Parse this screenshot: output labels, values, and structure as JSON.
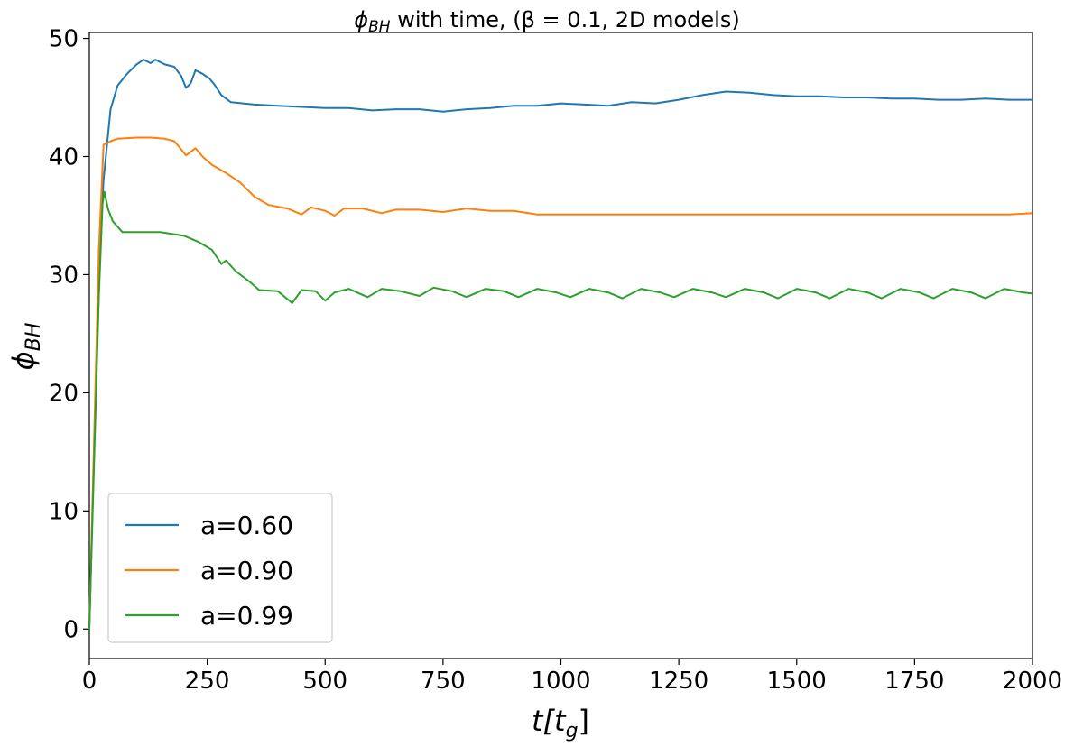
{
  "chart_data": {
    "type": "line",
    "title": "ϕBH with time, (β = 0.1, 2D models)",
    "title_parts": {
      "symbol": "ϕ",
      "subscript": "BH",
      "rest": " with time, (β = 0.1, 2D models)"
    },
    "xlabel_parts": {
      "main": "t[t",
      "subscript": "g",
      "end": "]"
    },
    "ylabel_parts": {
      "symbol": "ϕ",
      "subscript": "BH"
    },
    "xlim": [
      0,
      2000
    ],
    "ylim": [
      -2.5,
      50.5
    ],
    "xticks": [
      0,
      250,
      500,
      750,
      1000,
      1250,
      1500,
      1750,
      2000
    ],
    "yticks": [
      0,
      10,
      20,
      30,
      40,
      50
    ],
    "grid": false,
    "legend_position": "lower-left",
    "series": [
      {
        "name": "a=0.60",
        "color": "#1f77b4",
        "points": [
          [
            0,
            0
          ],
          [
            10,
            15
          ],
          [
            20,
            30
          ],
          [
            30,
            38
          ],
          [
            45,
            44
          ],
          [
            60,
            46
          ],
          [
            80,
            47
          ],
          [
            100,
            47.8
          ],
          [
            115,
            48.2
          ],
          [
            130,
            47.9
          ],
          [
            140,
            48.2
          ],
          [
            160,
            47.8
          ],
          [
            180,
            47.6
          ],
          [
            195,
            46.8
          ],
          [
            205,
            45.8
          ],
          [
            215,
            46.2
          ],
          [
            225,
            47.3
          ],
          [
            240,
            47.0
          ],
          [
            255,
            46.6
          ],
          [
            265,
            46.1
          ],
          [
            280,
            45.2
          ],
          [
            300,
            44.6
          ],
          [
            350,
            44.4
          ],
          [
            400,
            44.3
          ],
          [
            450,
            44.2
          ],
          [
            500,
            44.1
          ],
          [
            550,
            44.1
          ],
          [
            600,
            43.9
          ],
          [
            650,
            44.0
          ],
          [
            700,
            44.0
          ],
          [
            750,
            43.8
          ],
          [
            800,
            44.0
          ],
          [
            850,
            44.1
          ],
          [
            900,
            44.3
          ],
          [
            950,
            44.3
          ],
          [
            1000,
            44.5
          ],
          [
            1050,
            44.4
          ],
          [
            1100,
            44.3
          ],
          [
            1150,
            44.6
          ],
          [
            1200,
            44.5
          ],
          [
            1250,
            44.8
          ],
          [
            1300,
            45.2
          ],
          [
            1350,
            45.5
          ],
          [
            1400,
            45.4
          ],
          [
            1450,
            45.2
          ],
          [
            1500,
            45.1
          ],
          [
            1550,
            45.1
          ],
          [
            1600,
            45.0
          ],
          [
            1650,
            45.0
          ],
          [
            1700,
            44.9
          ],
          [
            1750,
            44.9
          ],
          [
            1800,
            44.8
          ],
          [
            1850,
            44.8
          ],
          [
            1900,
            44.9
          ],
          [
            1950,
            44.8
          ],
          [
            2000,
            44.8
          ]
        ]
      },
      {
        "name": "a=0.90",
        "color": "#ff7f0e",
        "points": [
          [
            0,
            0
          ],
          [
            10,
            16
          ],
          [
            20,
            32
          ],
          [
            30,
            41
          ],
          [
            45,
            41.3
          ],
          [
            60,
            41.5
          ],
          [
            100,
            41.6
          ],
          [
            130,
            41.6
          ],
          [
            160,
            41.5
          ],
          [
            180,
            41.3
          ],
          [
            195,
            40.6
          ],
          [
            205,
            40.1
          ],
          [
            215,
            40.4
          ],
          [
            225,
            40.7
          ],
          [
            240,
            40.0
          ],
          [
            260,
            39.3
          ],
          [
            290,
            38.6
          ],
          [
            320,
            37.8
          ],
          [
            350,
            36.6
          ],
          [
            380,
            35.9
          ],
          [
            420,
            35.6
          ],
          [
            450,
            35.1
          ],
          [
            470,
            35.7
          ],
          [
            500,
            35.4
          ],
          [
            520,
            35.0
          ],
          [
            540,
            35.6
          ],
          [
            580,
            35.6
          ],
          [
            620,
            35.2
          ],
          [
            650,
            35.5
          ],
          [
            700,
            35.5
          ],
          [
            750,
            35.3
          ],
          [
            800,
            35.6
          ],
          [
            850,
            35.4
          ],
          [
            900,
            35.4
          ],
          [
            950,
            35.1
          ],
          [
            1000,
            35.1
          ],
          [
            1100,
            35.1
          ],
          [
            1200,
            35.1
          ],
          [
            1300,
            35.1
          ],
          [
            1400,
            35.1
          ],
          [
            1500,
            35.1
          ],
          [
            1600,
            35.1
          ],
          [
            1700,
            35.1
          ],
          [
            1800,
            35.1
          ],
          [
            1900,
            35.1
          ],
          [
            1950,
            35.1
          ],
          [
            2000,
            35.2
          ]
        ]
      },
      {
        "name": "a=0.99",
        "color": "#2ca02c",
        "points": [
          [
            0,
            0
          ],
          [
            10,
            14
          ],
          [
            20,
            28
          ],
          [
            28,
            36
          ],
          [
            32,
            37
          ],
          [
            40,
            35.5
          ],
          [
            50,
            34.5
          ],
          [
            70,
            33.6
          ],
          [
            100,
            33.6
          ],
          [
            150,
            33.6
          ],
          [
            200,
            33.3
          ],
          [
            230,
            32.8
          ],
          [
            260,
            32.1
          ],
          [
            275,
            31.2
          ],
          [
            280,
            30.9
          ],
          [
            290,
            31.2
          ],
          [
            310,
            30.3
          ],
          [
            340,
            29.4
          ],
          [
            360,
            28.7
          ],
          [
            400,
            28.6
          ],
          [
            430,
            27.6
          ],
          [
            450,
            28.7
          ],
          [
            480,
            28.6
          ],
          [
            500,
            27.8
          ],
          [
            520,
            28.5
          ],
          [
            550,
            28.8
          ],
          [
            590,
            28.1
          ],
          [
            620,
            28.8
          ],
          [
            660,
            28.6
          ],
          [
            700,
            28.2
          ],
          [
            730,
            28.9
          ],
          [
            770,
            28.6
          ],
          [
            800,
            28.1
          ],
          [
            840,
            28.8
          ],
          [
            880,
            28.6
          ],
          [
            910,
            28.1
          ],
          [
            950,
            28.8
          ],
          [
            990,
            28.5
          ],
          [
            1020,
            28.1
          ],
          [
            1060,
            28.8
          ],
          [
            1100,
            28.5
          ],
          [
            1130,
            28.0
          ],
          [
            1170,
            28.8
          ],
          [
            1210,
            28.5
          ],
          [
            1240,
            28.1
          ],
          [
            1280,
            28.8
          ],
          [
            1320,
            28.5
          ],
          [
            1350,
            28.1
          ],
          [
            1390,
            28.8
          ],
          [
            1430,
            28.5
          ],
          [
            1460,
            28.0
          ],
          [
            1500,
            28.8
          ],
          [
            1540,
            28.5
          ],
          [
            1570,
            28.0
          ],
          [
            1610,
            28.8
          ],
          [
            1650,
            28.5
          ],
          [
            1680,
            28.0
          ],
          [
            1720,
            28.8
          ],
          [
            1760,
            28.5
          ],
          [
            1790,
            28.0
          ],
          [
            1830,
            28.8
          ],
          [
            1870,
            28.5
          ],
          [
            1900,
            28.0
          ],
          [
            1940,
            28.8
          ],
          [
            1980,
            28.5
          ],
          [
            2000,
            28.4
          ]
        ]
      }
    ]
  }
}
